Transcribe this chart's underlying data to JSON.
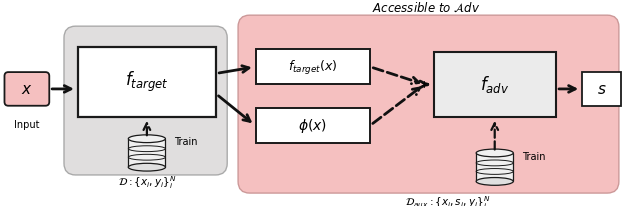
{
  "fig_width": 6.4,
  "fig_height": 2.07,
  "dpi": 100,
  "bg_color": "#ffffff",
  "pink_region_color": "#f5c0c0",
  "gray_region_color": "#e0dede",
  "box_pink": "#f5c0c0",
  "box_white": "#f0f0f0",
  "box_light": "#ebebeb",
  "ec": "#1a1a1a",
  "arrow_color": "#111111",
  "title": "Accessible to $\\mathcal{A}dv$",
  "label_input": "Input",
  "label_train1": "Train",
  "label_train2": "Train",
  "label_D1": "$\\mathcal{D} : \\{x_i, y_i\\}_i^N$",
  "label_D2": "$\\mathcal{D}_{aux} : \\{x_i, s_i, y_i\\}_i^N$",
  "xlim": [
    0,
    10
  ],
  "ylim": [
    0,
    3.2
  ]
}
